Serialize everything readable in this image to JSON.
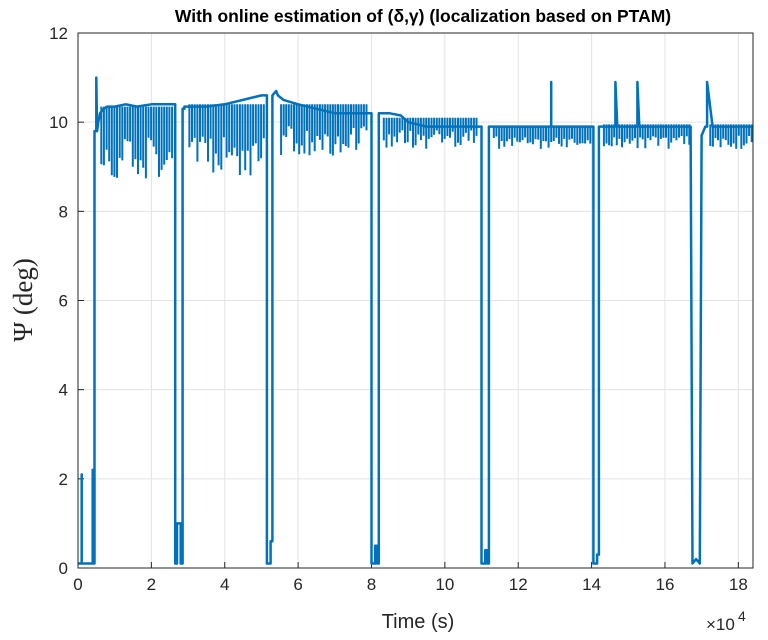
{
  "chart_data": {
    "type": "line",
    "title": "With online estimation of (δ,γ) (localization based on PTAM)",
    "xlabel": "Time (s)",
    "ylabel": "Ψ (deg)",
    "x_multiplier_base": "×10",
    "x_multiplier_exp": "4",
    "xlim": [
      0,
      18.4
    ],
    "ylim": [
      0,
      12
    ],
    "xticks": [
      "0",
      "2",
      "4",
      "6",
      "8",
      "10",
      "12",
      "14",
      "16",
      "18"
    ],
    "yticks": [
      "0",
      "2",
      "4",
      "6",
      "8",
      "10",
      "12"
    ],
    "grid": true,
    "line_color": "#0072BD",
    "series": [
      {
        "x": [
          0,
          0.1,
          0.1,
          0.1,
          0.15,
          0.15,
          0.15,
          0.4,
          0.4,
          0.4,
          0.45,
          0.45,
          0.45,
          0.5,
          0.5,
          0.52,
          0.55,
          0.58,
          0.6,
          0.65,
          0.7,
          0.8,
          1.0,
          1.3,
          1.6,
          2.0,
          2.3,
          2.6,
          2.65,
          2.65,
          2.7,
          2.7,
          2.8,
          2.8,
          2.85,
          2.85,
          2.9,
          2.9,
          3.0,
          3.5,
          4.0,
          4.5,
          5.0,
          5.1,
          5.15,
          5.15,
          5.25,
          5.25,
          5.3,
          5.3,
          5.4,
          5.45,
          5.6,
          6.0,
          6.5,
          7.0,
          7.5,
          7.9,
          8.0,
          8.0,
          8.1,
          8.1,
          8.15,
          8.15,
          8.2,
          8.2,
          8.3,
          8.5,
          8.8,
          9.0,
          9.5,
          10.0,
          10.5,
          10.9,
          11.0,
          11.0,
          11.1,
          11.1,
          11.15,
          11.15,
          11.2,
          11.2,
          11.3,
          11.5,
          12.0,
          12.5,
          12.9,
          12.9,
          12.9,
          13.0,
          13.5,
          14.0,
          14.05,
          14.05,
          14.15,
          14.15,
          14.2,
          14.2,
          14.3,
          14.6,
          14.65,
          14.65,
          14.7,
          15.0,
          15.25,
          15.25,
          15.3,
          15.5,
          16.0,
          16.5,
          16.7,
          16.7,
          16.75,
          16.75,
          16.85,
          16.85,
          16.95,
          16.95,
          17.0,
          17.1,
          17.15,
          17.15,
          17.3,
          17.5,
          18.0,
          18.4
        ],
        "y": [
          0.1,
          0.1,
          2.1,
          0.1,
          0.1,
          0.1,
          0.1,
          0.1,
          2.2,
          0.1,
          0.1,
          9.8,
          9.8,
          9.8,
          11.0,
          9.8,
          10.0,
          10.1,
          10.2,
          10.25,
          10.3,
          10.35,
          10.35,
          10.4,
          10.35,
          10.4,
          10.4,
          10.4,
          10.4,
          0.1,
          0.1,
          1.0,
          1.0,
          0.1,
          0.1,
          10.3,
          10.3,
          10.35,
          10.35,
          10.35,
          10.4,
          10.5,
          10.6,
          10.6,
          10.6,
          0.1,
          0.1,
          0.6,
          0.6,
          10.6,
          10.7,
          10.6,
          10.5,
          10.4,
          10.3,
          10.2,
          10.2,
          10.2,
          10.2,
          0.1,
          0.1,
          0.5,
          0.5,
          0.1,
          0.1,
          10.2,
          10.2,
          10.2,
          10.15,
          10.0,
          9.9,
          9.9,
          9.9,
          9.9,
          9.9,
          0.1,
          0.1,
          0.4,
          0.4,
          0.1,
          0.1,
          9.9,
          9.9,
          9.9,
          9.9,
          9.9,
          9.9,
          10.9,
          9.9,
          9.9,
          9.9,
          9.9,
          9.9,
          0.1,
          0.1,
          0.3,
          0.3,
          9.9,
          9.9,
          9.9,
          9.9,
          10.9,
          9.9,
          9.9,
          9.9,
          10.9,
          9.9,
          9.9,
          9.9,
          9.9,
          9.9,
          9.9,
          0.1,
          0.1,
          0.2,
          0.2,
          0.1,
          0.1,
          9.7,
          9.9,
          9.9,
          10.9,
          9.9,
          9.9,
          9.9,
          9.9
        ]
      }
    ],
    "oscillation_bands": [
      {
        "x0": 0.6,
        "x1": 2.6,
        "top": 10.35,
        "bottom": 8.7
      },
      {
        "x0": 3.0,
        "x1": 5.1,
        "top": 10.4,
        "bottom": 8.7
      },
      {
        "x0": 5.5,
        "x1": 7.9,
        "top": 10.4,
        "bottom": 9.2
      },
      {
        "x0": 8.3,
        "x1": 10.9,
        "top": 10.1,
        "bottom": 9.4
      },
      {
        "x0": 11.3,
        "x1": 14.0,
        "top": 9.9,
        "bottom": 9.4
      },
      {
        "x0": 14.3,
        "x1": 16.7,
        "top": 9.95,
        "bottom": 9.4
      },
      {
        "x0": 17.2,
        "x1": 18.4,
        "top": 9.95,
        "bottom": 9.4
      }
    ]
  }
}
